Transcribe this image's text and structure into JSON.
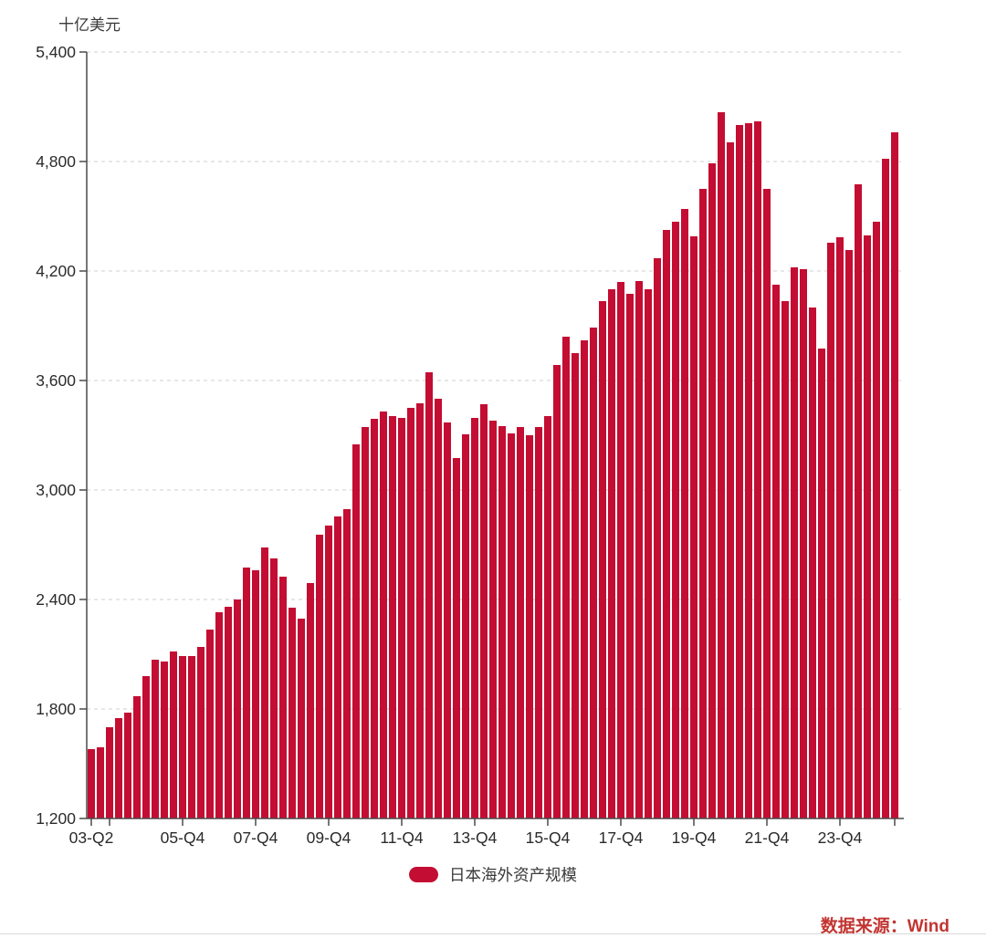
{
  "page": {
    "background": "#ffffff"
  },
  "chart_data": {
    "type": "bar",
    "title": "",
    "unit_label": "十亿美元",
    "series_name": "日本海外资产规模",
    "categories": [
      "03-Q2",
      "03-Q3",
      "03-Q4",
      "04-Q1",
      "04-Q2",
      "04-Q3",
      "04-Q4",
      "05-Q1",
      "05-Q2",
      "05-Q3",
      "05-Q4",
      "06-Q1",
      "06-Q2",
      "06-Q3",
      "06-Q4",
      "07-Q1",
      "07-Q2",
      "07-Q3",
      "07-Q4",
      "08-Q1",
      "08-Q2",
      "08-Q3",
      "08-Q4",
      "09-Q1",
      "09-Q2",
      "09-Q3",
      "09-Q4",
      "10-Q1",
      "10-Q2",
      "10-Q3",
      "10-Q4",
      "11-Q1",
      "11-Q2",
      "11-Q3",
      "11-Q4",
      "12-Q1",
      "12-Q2",
      "12-Q3",
      "12-Q4",
      "13-Q1",
      "13-Q2",
      "13-Q3",
      "13-Q4",
      "14-Q1",
      "14-Q2",
      "14-Q3",
      "14-Q4",
      "15-Q1",
      "15-Q2",
      "15-Q3",
      "15-Q4",
      "16-Q1",
      "16-Q2",
      "16-Q3",
      "16-Q4",
      "17-Q1",
      "17-Q2",
      "17-Q3",
      "17-Q4",
      "18-Q1",
      "18-Q2",
      "18-Q3",
      "18-Q4",
      "19-Q1",
      "19-Q2",
      "19-Q3",
      "19-Q4",
      "20-Q1",
      "20-Q2",
      "20-Q3",
      "20-Q4",
      "21-Q1",
      "21-Q2",
      "21-Q3",
      "21-Q4",
      "22-Q1",
      "22-Q2",
      "22-Q3",
      "22-Q4",
      "23-Q1",
      "23-Q2",
      "23-Q3",
      "23-Q4",
      "24-Q1",
      "24-Q2",
      "24-Q3",
      "24-Q4",
      "25-Q1",
      "25-Q2"
    ],
    "values": [
      1580,
      1590,
      1700,
      1750,
      1780,
      1870,
      1980,
      2070,
      2060,
      2115,
      2090,
      2090,
      2140,
      2235,
      2330,
      2360,
      2400,
      2575,
      2560,
      2685,
      2625,
      2525,
      2355,
      2295,
      2490,
      2755,
      2805,
      2855,
      2895,
      3250,
      3345,
      3390,
      3430,
      3405,
      3395,
      3450,
      3475,
      3645,
      3500,
      3370,
      3175,
      3305,
      3395,
      3470,
      3380,
      3350,
      3310,
      3345,
      3300,
      3345,
      3405,
      3685,
      3840,
      3750,
      3820,
      3890,
      4035,
      4100,
      4140,
      4075,
      4145,
      4100,
      4270,
      4425,
      4470,
      4540,
      4390,
      4650,
      4790,
      5070,
      4905,
      5000,
      5010,
      5020,
      4650,
      4125,
      4035,
      4220,
      4210,
      4000,
      3775,
      4355,
      4385,
      4315,
      4675,
      4395,
      4470,
      4815,
      4960
    ],
    "x_ticks": [
      {
        "index": 0,
        "label": "03-Q2"
      },
      {
        "index": 10,
        "label": "05-Q4"
      },
      {
        "index": 18,
        "label": "07-Q4"
      },
      {
        "index": 26,
        "label": "09-Q4"
      },
      {
        "index": 34,
        "label": "11-Q4"
      },
      {
        "index": 42,
        "label": "13-Q4"
      },
      {
        "index": 50,
        "label": "15-Q4"
      },
      {
        "index": 58,
        "label": "17-Q4"
      },
      {
        "index": 66,
        "label": "19-Q4"
      },
      {
        "index": 74,
        "label": "21-Q4"
      },
      {
        "index": 82,
        "label": "23-Q4"
      }
    ],
    "x_minor_tick_indices": [
      2,
      88
    ],
    "y_ticks": [
      1200,
      1800,
      2400,
      3000,
      3600,
      4200,
      4800,
      5400
    ],
    "y_tick_labels": [
      "1,200",
      "1,800",
      "2,400",
      "3,000",
      "3,600",
      "4,200",
      "4,800",
      "5,400"
    ],
    "ylim": [
      1200,
      5400
    ],
    "grid": "horizontal-dashed",
    "legend_position": "bottom-center",
    "bar_color": "#c30d32"
  },
  "legend": {
    "label": "日本海外资产规模",
    "swatch_color": "#c30d32"
  },
  "source": {
    "text": "数据来源：Wind",
    "color": "#c23531"
  }
}
